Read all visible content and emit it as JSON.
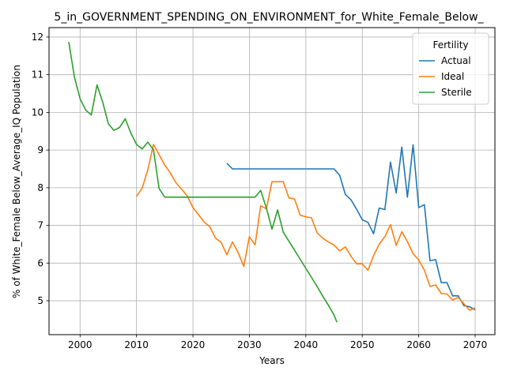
{
  "chart_data": {
    "type": "line",
    "title": "5_in_GOVERNMENT_SPENDING_ON_ENVIRONMENT_for_White_Female_Below_",
    "xlabel": "Years",
    "ylabel": "% of White_Female Below_Average_IQ Population",
    "xlim": [
      1994.5,
      2073.5
    ],
    "ylim": [
      4.1,
      12.25
    ],
    "xticks": [
      2000,
      2010,
      2020,
      2030,
      2040,
      2050,
      2060,
      2070
    ],
    "yticks": [
      5,
      6,
      7,
      8,
      9,
      10,
      11,
      12
    ],
    "grid": true,
    "legend": {
      "title": "Fertility",
      "placement": "top-right"
    },
    "series": [
      {
        "name": "Actual",
        "color": "#1f77b4",
        "points": [
          [
            2026,
            8.65
          ],
          [
            2027,
            8.5
          ],
          [
            2028,
            8.5
          ],
          [
            2030,
            8.5
          ],
          [
            2035,
            8.5
          ],
          [
            2040,
            8.5
          ],
          [
            2045,
            8.5
          ],
          [
            2046,
            8.33
          ],
          [
            2047,
            7.82
          ],
          [
            2048,
            7.68
          ],
          [
            2049,
            7.43
          ],
          [
            2050,
            7.15
          ],
          [
            2051,
            7.08
          ],
          [
            2052,
            6.78
          ],
          [
            2053,
            7.46
          ],
          [
            2054,
            7.42
          ],
          [
            2055,
            8.68
          ],
          [
            2056,
            7.86
          ],
          [
            2057,
            9.08
          ],
          [
            2058,
            7.75
          ],
          [
            2059,
            9.14
          ],
          [
            2060,
            7.47
          ],
          [
            2061,
            7.55
          ],
          [
            2062,
            6.06
          ],
          [
            2063,
            6.09
          ],
          [
            2064,
            5.48
          ],
          [
            2065,
            5.48
          ],
          [
            2066,
            5.13
          ],
          [
            2067,
            5.13
          ],
          [
            2068,
            4.87
          ],
          [
            2069,
            4.84
          ],
          [
            2070,
            4.76
          ]
        ]
      },
      {
        "name": "Ideal",
        "color": "#ff7f0e",
        "points": [
          [
            2010,
            7.77
          ],
          [
            2011,
            7.99
          ],
          [
            2012,
            8.47
          ],
          [
            2013,
            9.15
          ],
          [
            2014,
            8.88
          ],
          [
            2015,
            8.6
          ],
          [
            2016,
            8.39
          ],
          [
            2017,
            8.13
          ],
          [
            2018,
            7.96
          ],
          [
            2019,
            7.78
          ],
          [
            2020,
            7.47
          ],
          [
            2021,
            7.28
          ],
          [
            2022,
            7.09
          ],
          [
            2023,
            6.96
          ],
          [
            2024,
            6.66
          ],
          [
            2025,
            6.55
          ],
          [
            2026,
            6.22
          ],
          [
            2027,
            6.56
          ],
          [
            2028,
            6.28
          ],
          [
            2029,
            5.91
          ],
          [
            2030,
            6.7
          ],
          [
            2031,
            6.48
          ],
          [
            2032,
            7.52
          ],
          [
            2033,
            7.44
          ],
          [
            2034,
            8.16
          ],
          [
            2035,
            8.16
          ],
          [
            2036,
            8.16
          ],
          [
            2037,
            7.73
          ],
          [
            2038,
            7.7
          ],
          [
            2039,
            7.27
          ],
          [
            2040,
            7.23
          ],
          [
            2041,
            7.2
          ],
          [
            2042,
            6.8
          ],
          [
            2043,
            6.66
          ],
          [
            2044,
            6.56
          ],
          [
            2045,
            6.48
          ],
          [
            2046,
            6.32
          ],
          [
            2047,
            6.43
          ],
          [
            2048,
            6.18
          ],
          [
            2049,
            5.98
          ],
          [
            2050,
            5.98
          ],
          [
            2051,
            5.81
          ],
          [
            2052,
            6.2
          ],
          [
            2053,
            6.5
          ],
          [
            2054,
            6.7
          ],
          [
            2055,
            7.02
          ],
          [
            2056,
            6.47
          ],
          [
            2057,
            6.83
          ],
          [
            2058,
            6.57
          ],
          [
            2059,
            6.25
          ],
          [
            2060,
            6.08
          ],
          [
            2061,
            5.81
          ],
          [
            2062,
            5.38
          ],
          [
            2063,
            5.42
          ],
          [
            2064,
            5.19
          ],
          [
            2065,
            5.18
          ],
          [
            2066,
            5.02
          ],
          [
            2067,
            5.09
          ],
          [
            2068,
            4.92
          ],
          [
            2069,
            4.75
          ],
          [
            2070,
            4.81
          ]
        ]
      },
      {
        "name": "Sterile",
        "color": "#2ca02c",
        "points": [
          [
            1998,
            11.87
          ],
          [
            1999,
            10.94
          ],
          [
            2000,
            10.36
          ],
          [
            2001,
            10.06
          ],
          [
            2002,
            9.93
          ],
          [
            2003,
            10.73
          ],
          [
            2004,
            10.28
          ],
          [
            2005,
            9.7
          ],
          [
            2006,
            9.52
          ],
          [
            2007,
            9.6
          ],
          [
            2008,
            9.83
          ],
          [
            2009,
            9.45
          ],
          [
            2010,
            9.15
          ],
          [
            2011,
            9.03
          ],
          [
            2012,
            9.21
          ],
          [
            2013,
            9.01
          ],
          [
            2014,
            7.98
          ],
          [
            2015,
            7.75
          ],
          [
            2020,
            7.75
          ],
          [
            2025,
            7.75
          ],
          [
            2031,
            7.75
          ],
          [
            2032,
            7.93
          ],
          [
            2033,
            7.46
          ],
          [
            2034,
            6.9
          ],
          [
            2035,
            7.41
          ],
          [
            2036,
            6.82
          ],
          [
            2037,
            6.58
          ],
          [
            2038,
            6.34
          ],
          [
            2039,
            6.1
          ],
          [
            2040,
            5.86
          ],
          [
            2041,
            5.62
          ],
          [
            2042,
            5.38
          ],
          [
            2043,
            5.12
          ],
          [
            2044,
            4.88
          ],
          [
            2045,
            4.62
          ],
          [
            2045.5,
            4.43
          ]
        ]
      }
    ]
  }
}
